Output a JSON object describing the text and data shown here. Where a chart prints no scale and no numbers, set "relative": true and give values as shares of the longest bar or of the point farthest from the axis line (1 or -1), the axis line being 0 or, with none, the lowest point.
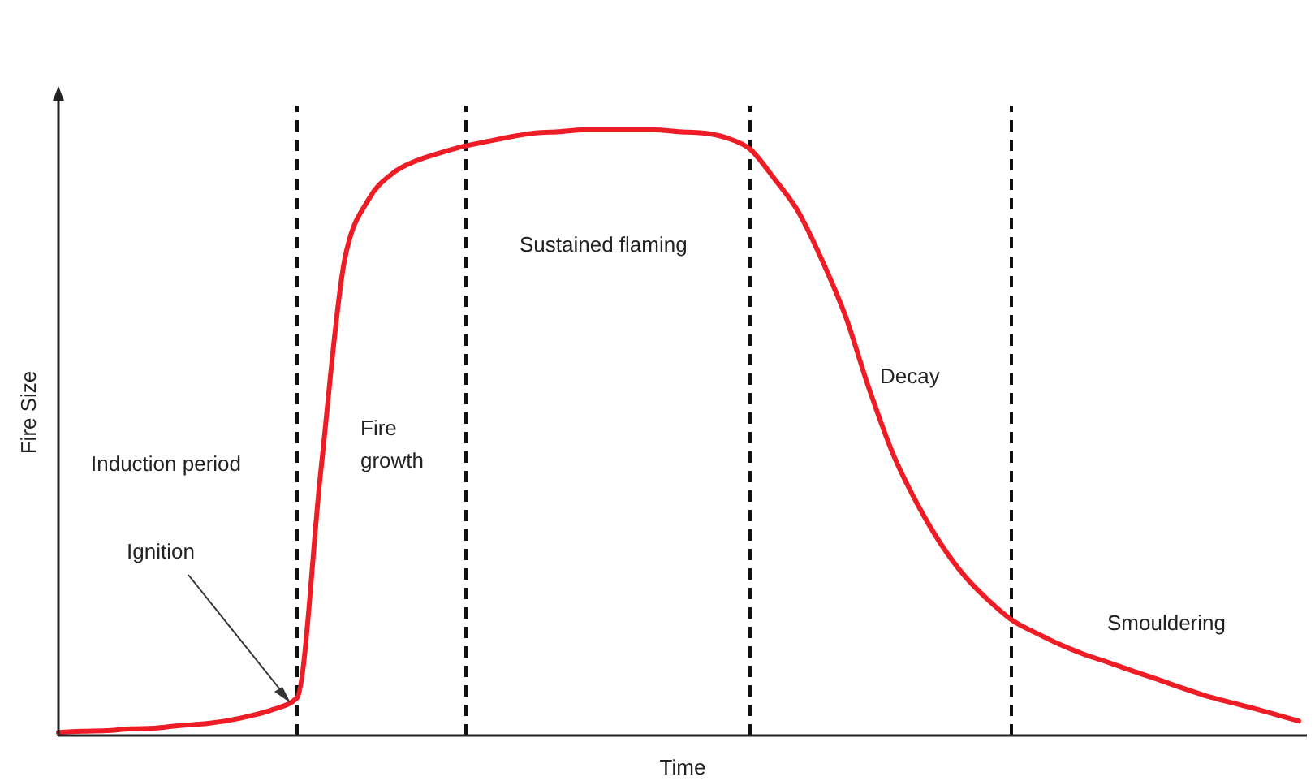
{
  "chart_data": {
    "type": "line",
    "relative": true,
    "xlabel": "Time",
    "ylabel": "Fire Size",
    "categories": [
      null,
      null,
      null,
      null,
      null,
      null,
      null,
      null,
      null,
      null,
      null,
      null,
      null,
      null,
      null,
      null,
      null,
      null,
      null,
      null,
      null,
      null,
      null,
      null,
      null,
      null,
      null,
      null,
      null,
      null,
      null,
      null,
      null,
      null,
      null,
      null,
      null,
      null,
      null,
      null,
      null,
      null,
      null,
      null,
      null,
      null,
      null,
      null,
      null,
      null,
      null,
      null,
      null
    ],
    "series": [
      {
        "color": "#ee1c25",
        "values": [
          0.005,
          0.007,
          0.008,
          0.011,
          0.012,
          0.016,
          0.019,
          0.024,
          0.032,
          0.043,
          0.062,
          0.437,
          0.786,
          0.885,
          0.928,
          0.949,
          0.962,
          0.973,
          0.981,
          0.989,
          0.995,
          0.997,
          1,
          1,
          1,
          1,
          0.997,
          0.995,
          0.987,
          0.968,
          0.92,
          0.866,
          0.786,
          0.692,
          0.571,
          0.464,
          0.383,
          0.316,
          0.263,
          0.223,
          0.19,
          0.169,
          0.15,
          0.134,
          0.121,
          0.107,
          0.094,
          0.08,
          0.067,
          0.056,
          0.046,
          0.035,
          0.024
        ]
      }
    ],
    "grid": "x",
    "annotations": [
      "Induction period",
      "Ignition",
      "Fire growth",
      "Sustained flaming",
      "Decay",
      "Smouldering"
    ]
  }
}
